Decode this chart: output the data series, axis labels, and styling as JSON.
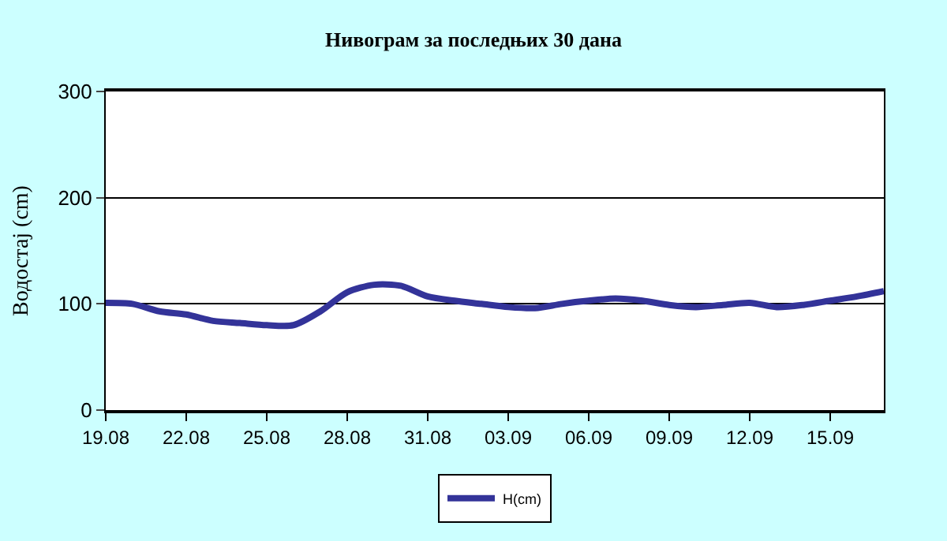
{
  "chart_data": {
    "type": "line",
    "title": "Нивограм за последњих 30 дана",
    "ylabel": "Водостај (cm)",
    "categories": [
      "19.08",
      null,
      null,
      "22.08",
      null,
      null,
      "25.08",
      null,
      null,
      "28.08",
      null,
      null,
      "31.08",
      null,
      null,
      "03.09",
      null,
      null,
      "06.09",
      null,
      null,
      "09.09",
      null,
      null,
      "12.09",
      null,
      null,
      "15.09",
      null,
      null
    ],
    "series": [
      {
        "name": "H(cm)",
        "color": "#333399",
        "values": [
          101,
          100,
          93,
          90,
          84,
          82,
          80,
          80,
          93,
          111,
          118,
          117,
          107,
          103,
          100,
          97,
          96,
          100,
          103,
          105,
          103,
          99,
          97,
          99,
          101,
          97,
          99,
          103,
          107,
          112
        ]
      }
    ],
    "ylim": [
      0,
      300
    ],
    "yticks": [
      0,
      100,
      200,
      300
    ],
    "grid": "y",
    "legend": "bottom",
    "marker": "none",
    "line_style": "solid"
  }
}
